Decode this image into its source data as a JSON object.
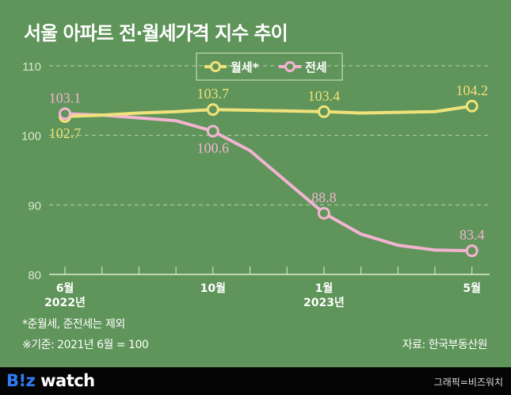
{
  "title": "서울 아파트 전·월세가격 지수 추이",
  "notes": {
    "footnote": "*준월세, 준전세는 제외",
    "base": "※기준: 2021년 6월 = 100",
    "source": "자료: 한국부동산원"
  },
  "footer": {
    "logo_b": "B!z",
    "logo_rest": " watch",
    "credit": "그래픽=비즈워치"
  },
  "colors": {
    "background": "#5f945a",
    "wolse": "#efe27a",
    "jeonse": "#f3b4d2",
    "grid": "#b9d3a9"
  },
  "chart_data": {
    "type": "line",
    "title": "서울 아파트 전·월세가격 지수 추이",
    "x": [
      "2022-06",
      "2022-07",
      "2022-08",
      "2022-09",
      "2022-10",
      "2022-11",
      "2022-12",
      "2023-01",
      "2023-02",
      "2023-03",
      "2023-04",
      "2023-05"
    ],
    "x_tick_labels": [
      {
        "index": 0,
        "month": "6월",
        "year": "2022년"
      },
      {
        "index": 4,
        "month": "10월",
        "year": ""
      },
      {
        "index": 7,
        "month": "1월",
        "year": "2023년"
      },
      {
        "index": 11,
        "month": "5월",
        "year": ""
      }
    ],
    "ylim": [
      80,
      110
    ],
    "y_ticks": [
      "80",
      "90",
      "100",
      "110"
    ],
    "grid": "horizontal dashed",
    "legend": "top-center",
    "series": [
      {
        "name": "월세*",
        "color": "#efe27a",
        "values": [
          102.7,
          102.9,
          103.2,
          103.4,
          103.7,
          103.6,
          103.5,
          103.4,
          103.2,
          103.3,
          103.4,
          104.2
        ],
        "labels": [
          {
            "index": 0,
            "text": "102.7",
            "pos": "below"
          },
          {
            "index": 4,
            "text": "103.7",
            "pos": "above"
          },
          {
            "index": 7,
            "text": "103.4",
            "pos": "above"
          },
          {
            "index": 11,
            "text": "104.2",
            "pos": "above"
          }
        ]
      },
      {
        "name": "전세",
        "color": "#f3b4d2",
        "values": [
          103.1,
          102.9,
          102.5,
          102.1,
          100.6,
          97.8,
          93.3,
          88.8,
          85.8,
          84.2,
          83.5,
          83.4
        ],
        "labels": [
          {
            "index": 0,
            "text": "103.1",
            "pos": "above"
          },
          {
            "index": 4,
            "text": "100.6",
            "pos": "below"
          },
          {
            "index": 7,
            "text": "88.8",
            "pos": "above"
          },
          {
            "index": 11,
            "text": "83.4",
            "pos": "above"
          }
        ]
      }
    ]
  }
}
